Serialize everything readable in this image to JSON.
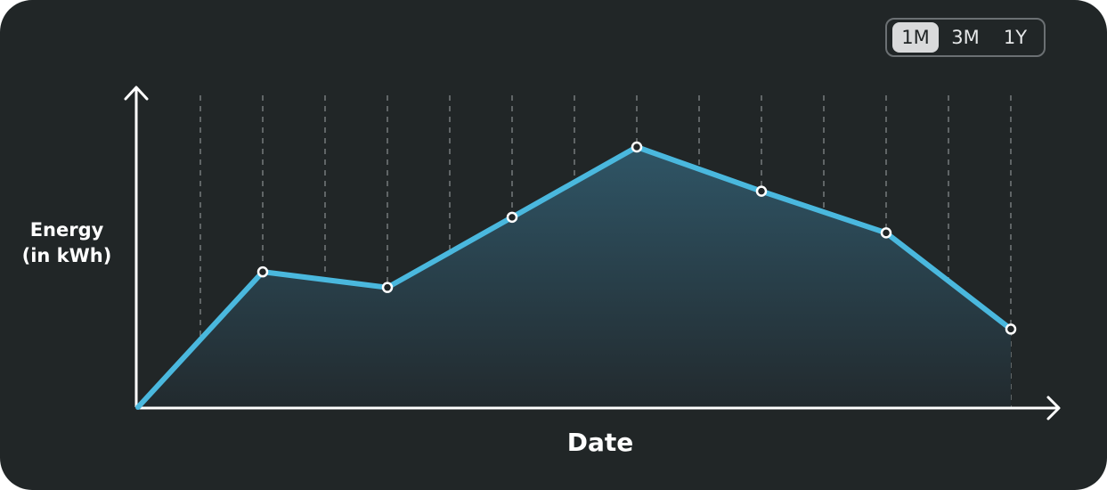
{
  "range_selector": {
    "options": [
      "1M",
      "3M",
      "1Y"
    ],
    "selected": "1M"
  },
  "chart_data": {
    "type": "area",
    "xlabel": "Date",
    "ylabel_lines": [
      "Energy",
      "(in kWh)"
    ],
    "x": [
      0,
      2,
      4,
      6,
      8,
      10,
      12,
      14
    ],
    "y": [
      0,
      52,
      46,
      73,
      100,
      83,
      67,
      30
    ],
    "markers_on_points": [
      false,
      true,
      true,
      true,
      true,
      true,
      true,
      true
    ],
    "xlim": [
      0,
      15
    ],
    "ylim": [
      0,
      100
    ],
    "vertical_gridlines": [
      1,
      2,
      3,
      4,
      5,
      6,
      7,
      8,
      9,
      10,
      11,
      12,
      13,
      14
    ],
    "grid_style": "dashed-vertical",
    "tick_labels": "none",
    "colors": {
      "line": "#4ab8de",
      "area_top": "#2f5566",
      "area_bottom": "#222a2e",
      "axis": "#ffffff",
      "grid": "#8a8f91",
      "background": "#212627"
    }
  }
}
